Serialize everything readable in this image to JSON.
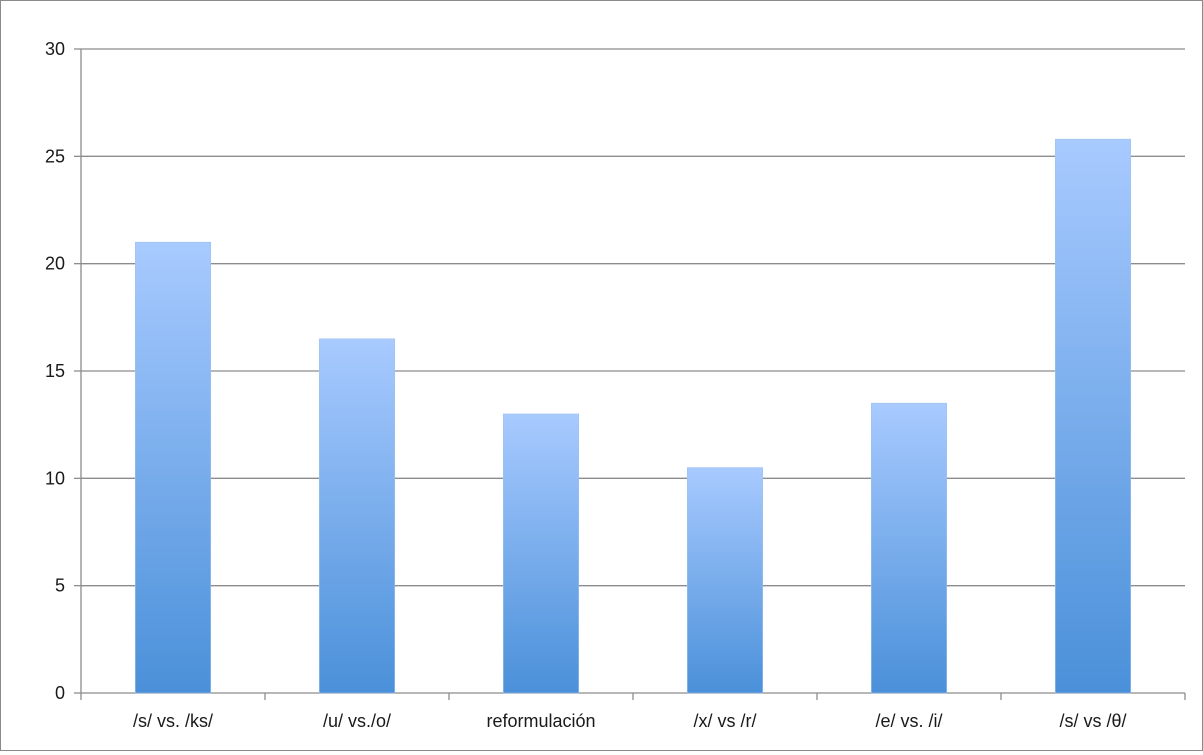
{
  "chart_data": {
    "type": "bar",
    "categories": [
      "/s/ vs. /ks/",
      "/u/ vs./o/",
      "reformulación",
      "/x/ vs /r/",
      "/e/ vs. /i/",
      "/s/ vs /θ/"
    ],
    "values": [
      21,
      16.5,
      13,
      10.5,
      13.5,
      25.8
    ],
    "title": "",
    "xlabel": "",
    "ylabel": "",
    "ylim": [
      0,
      30
    ],
    "yticks": [
      0,
      5,
      10,
      15,
      20,
      25,
      30
    ],
    "grid": true,
    "legend": "none",
    "colors": {
      "bar_top": "#a8caff",
      "bar_bottom": "#4a90d9",
      "grid": "#8c8c8c",
      "axis": "#8c8c8c"
    }
  }
}
